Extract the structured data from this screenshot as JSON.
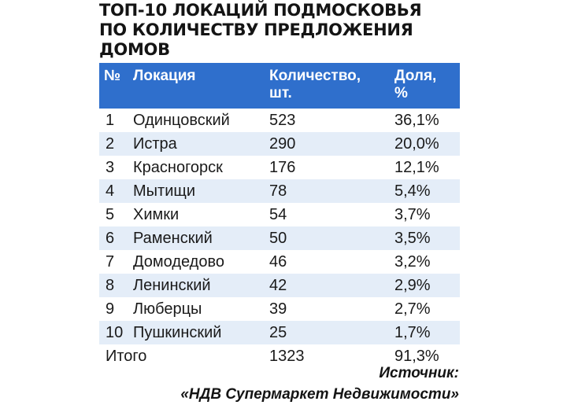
{
  "title": {
    "line1": "ТОП-10 ЛОКАЦИЙ ПОДМОСКОВЬЯ",
    "line2": "ПО КОЛИЧЕСТВУ ПРЕДЛОЖЕНИЯ",
    "line3": "ДОМОВ"
  },
  "table": {
    "headers": {
      "num": "№",
      "location": "Локация",
      "quantity_line1": "Количество,",
      "quantity_line2": "шт.",
      "share_line1": "Доля,",
      "share_line2": "%"
    },
    "rows": [
      {
        "num": "1",
        "location": "Одинцовский",
        "quantity": "523",
        "share": "36,1%"
      },
      {
        "num": "2",
        "location": "Истра",
        "quantity": "290",
        "share": "20,0%"
      },
      {
        "num": "3",
        "location": "Красногорск",
        "quantity": "176",
        "share": "12,1%"
      },
      {
        "num": "4",
        "location": "Мытищи",
        "quantity": "78",
        "share": "5,4%"
      },
      {
        "num": "5",
        "location": "Химки",
        "quantity": "54",
        "share": "3,7%"
      },
      {
        "num": "6",
        "location": "Раменский",
        "quantity": "50",
        "share": "3,5%"
      },
      {
        "num": "7",
        "location": "Домодедово",
        "quantity": "46",
        "share": "3,2%"
      },
      {
        "num": "8",
        "location": "Ленинский",
        "quantity": "42",
        "share": "2,9%"
      },
      {
        "num": "9",
        "location": "Люберцы",
        "quantity": "39",
        "share": "2,7%"
      },
      {
        "num": "10",
        "location": "Пушкинский",
        "quantity": "25",
        "share": "1,7%"
      }
    ],
    "total": {
      "label": "Итого",
      "quantity": "1323",
      "share": "91,3%"
    }
  },
  "source": {
    "line1": "Источник:",
    "line2": "«НДВ Супермаркет Недвижимости»"
  },
  "colors": {
    "header_bg": "#2f6fcc",
    "header_text": "#ffffff",
    "alt_row_bg": "#e4edf8"
  }
}
